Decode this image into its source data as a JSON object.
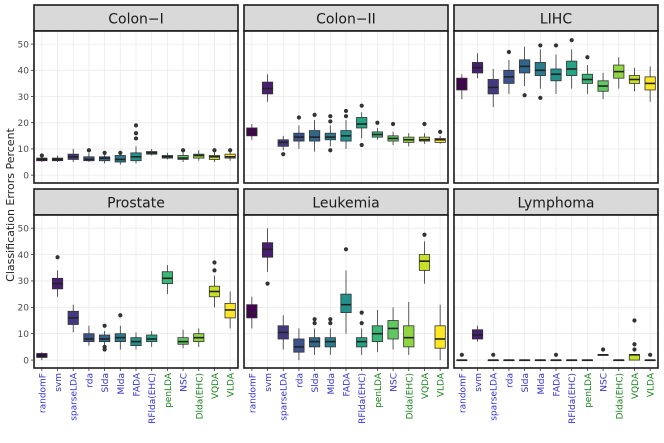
{
  "chart_data": {
    "type": "boxplot",
    "ylabel": "Classification Errors Percent",
    "ylim": [
      -3,
      55
    ],
    "yticks": [
      0,
      10,
      20,
      30,
      40,
      50
    ],
    "categories": [
      "randomF",
      "svm",
      "sparseLDA",
      "rda",
      "Slda",
      "Mlda",
      "FADA",
      "RFlda(EHC)",
      "penLDA",
      "NSC",
      "Dlda(EHC)",
      "VQDA",
      "VLDA"
    ],
    "category_colors": [
      "#3333cc",
      "#3333cc",
      "#3333cc",
      "#3333cc",
      "#3333cc",
      "#3333cc",
      "#3333cc",
      "#3333cc",
      "#1a801a",
      "#3333cc",
      "#1a801a",
      "#1a801a",
      "#1a801a"
    ],
    "fill_colors": [
      "#440154",
      "#482475",
      "#414487",
      "#355f8d",
      "#2a788e",
      "#21918c",
      "#22a884",
      "#44bf70",
      "#7ad151",
      "#bddf26",
      "#fde725"
    ],
    "panels": [
      {
        "title": "Colon−I",
        "boxes": [
          {
            "q1": 5.5,
            "med": 6,
            "q3": 6.5,
            "lo": 5,
            "hi": 7,
            "out": [
              7.5
            ]
          },
          {
            "q1": 5.5,
            "med": 6,
            "q3": 6.5,
            "lo": 5,
            "hi": 7.5,
            "out": []
          },
          {
            "q1": 6,
            "med": 7,
            "q3": 8,
            "lo": 5,
            "hi": 10,
            "out": []
          },
          {
            "q1": 5.5,
            "med": 6,
            "q3": 7,
            "lo": 5,
            "hi": 8.5,
            "out": [
              9.5
            ]
          },
          {
            "q1": 5.5,
            "med": 6.5,
            "q3": 7,
            "lo": 4.5,
            "hi": 8,
            "out": [
              8.5
            ]
          },
          {
            "q1": 5,
            "med": 6,
            "q3": 7.5,
            "lo": 4,
            "hi": 9,
            "out": [
              8.5
            ]
          },
          {
            "q1": 5.5,
            "med": 7,
            "q3": 8.5,
            "lo": 4.5,
            "hi": 11,
            "out": [
              14,
              16,
              19
            ]
          },
          {
            "q1": 8,
            "med": 8.5,
            "q3": 9,
            "lo": 7.5,
            "hi": 10,
            "out": []
          },
          {
            "q1": 6.5,
            "med": 7,
            "q3": 7.5,
            "lo": 6,
            "hi": 8.5,
            "out": []
          },
          {
            "q1": 6,
            "med": 6.5,
            "q3": 7.5,
            "lo": 5,
            "hi": 9,
            "out": [
              9.5
            ]
          },
          {
            "q1": 6.5,
            "med": 7.5,
            "q3": 8,
            "lo": 5.5,
            "hi": 9.5,
            "out": []
          },
          {
            "q1": 6,
            "med": 7,
            "q3": 7.5,
            "lo": 5,
            "hi": 9,
            "out": [
              9.5
            ]
          },
          {
            "q1": 6.5,
            "med": 7,
            "q3": 8,
            "lo": 5.5,
            "hi": 9,
            "out": [
              9.5
            ]
          }
        ]
      },
      {
        "title": "Colon−II",
        "boxes": [
          {
            "q1": 15,
            "med": 16.5,
            "q3": 18,
            "lo": 13.5,
            "hi": 19.5,
            "out": []
          },
          {
            "q1": 31,
            "med": 33,
            "q3": 35.5,
            "lo": 28,
            "hi": 38.5,
            "out": []
          },
          {
            "q1": 11,
            "med": 12.5,
            "q3": 13.5,
            "lo": 9.5,
            "hi": 15,
            "out": [
              8
            ]
          },
          {
            "q1": 13,
            "med": 14.5,
            "q3": 16,
            "lo": 10,
            "hi": 19,
            "out": [
              22
            ]
          },
          {
            "q1": 13,
            "med": 14.5,
            "q3": 17,
            "lo": 9,
            "hi": 21,
            "out": [
              23
            ]
          },
          {
            "q1": 13.5,
            "med": 14.5,
            "q3": 16,
            "lo": 11,
            "hi": 19,
            "out": [
              9.5,
              20.5,
              22.5
            ]
          },
          {
            "q1": 13,
            "med": 15,
            "q3": 17,
            "lo": 10,
            "hi": 21,
            "out": [
              22.5,
              24.5
            ]
          },
          {
            "q1": 18,
            "med": 19.5,
            "q3": 22,
            "lo": 14,
            "hi": 24,
            "out": [
              11.5,
              26.5
            ]
          },
          {
            "q1": 14.5,
            "med": 15.5,
            "q3": 16.5,
            "lo": 13.5,
            "hi": 18,
            "out": [
              20
            ]
          },
          {
            "q1": 13,
            "med": 14,
            "q3": 15,
            "lo": 11.5,
            "hi": 16.5,
            "out": [
              19.5
            ]
          },
          {
            "q1": 12.5,
            "med": 13.5,
            "q3": 14.5,
            "lo": 11,
            "hi": 16,
            "out": []
          },
          {
            "q1": 13,
            "med": 13.5,
            "q3": 14.5,
            "lo": 12,
            "hi": 16,
            "out": [
              19.5
            ]
          },
          {
            "q1": 12.5,
            "med": 13.5,
            "q3": 14,
            "lo": 12,
            "hi": 15,
            "out": [
              16.5
            ]
          }
        ]
      },
      {
        "title": "LIHC",
        "boxes": [
          {
            "q1": 32.5,
            "med": 34.5,
            "q3": 37,
            "lo": 29,
            "hi": 38.5,
            "out": []
          },
          {
            "q1": 39,
            "med": 41,
            "q3": 43,
            "lo": 37,
            "hi": 46.5,
            "out": []
          },
          {
            "q1": 31,
            "med": 33.5,
            "q3": 36.5,
            "lo": 26,
            "hi": 40.5,
            "out": []
          },
          {
            "q1": 35,
            "med": 37.5,
            "q3": 40,
            "lo": 31,
            "hi": 44,
            "out": [
              47
            ]
          },
          {
            "q1": 39,
            "med": 41.5,
            "q3": 44,
            "lo": 34,
            "hi": 49,
            "out": [
              30.5
            ]
          },
          {
            "q1": 38,
            "med": 40,
            "q3": 43,
            "lo": 33,
            "hi": 48,
            "out": [
              29.5,
              49.5
            ]
          },
          {
            "q1": 36,
            "med": 38.5,
            "q3": 40.5,
            "lo": 31,
            "hi": 46,
            "out": [
              49.5
            ]
          },
          {
            "q1": 38,
            "med": 40.5,
            "q3": 43.5,
            "lo": 33,
            "hi": 48,
            "out": [
              51.5
            ]
          },
          {
            "q1": 35,
            "med": 36.5,
            "q3": 38.5,
            "lo": 31,
            "hi": 42,
            "out": [
              45
            ]
          },
          {
            "q1": 32,
            "med": 34,
            "q3": 36,
            "lo": 29,
            "hi": 39,
            "out": []
          },
          {
            "q1": 37,
            "med": 39.5,
            "q3": 42,
            "lo": 33,
            "hi": 45,
            "out": []
          },
          {
            "q1": 35,
            "med": 36.5,
            "q3": 38,
            "lo": 32,
            "hi": 41,
            "out": []
          },
          {
            "q1": 32.5,
            "med": 35,
            "q3": 37.5,
            "lo": 28,
            "hi": 41.5,
            "out": []
          }
        ]
      },
      {
        "title": "Prostate",
        "boxes": [
          {
            "q1": 1,
            "med": 1.5,
            "q3": 2.5,
            "lo": 0,
            "hi": 3,
            "out": []
          },
          {
            "q1": 27,
            "med": 29,
            "q3": 31,
            "lo": 24,
            "hi": 34,
            "out": [
              39
            ]
          },
          {
            "q1": 13.5,
            "med": 16,
            "q3": 18.5,
            "lo": 10.5,
            "hi": 21,
            "out": []
          },
          {
            "q1": 7,
            "med": 8,
            "q3": 10,
            "lo": 5.5,
            "hi": 13,
            "out": []
          },
          {
            "q1": 7,
            "med": 8,
            "q3": 9.5,
            "lo": 5,
            "hi": 11,
            "out": [
              4,
              5,
              13
            ]
          },
          {
            "q1": 7,
            "med": 8.5,
            "q3": 10,
            "lo": 4,
            "hi": 13,
            "out": [
              17
            ]
          },
          {
            "q1": 5.5,
            "med": 7,
            "q3": 8.5,
            "lo": 4,
            "hi": 10.5,
            "out": []
          },
          {
            "q1": 7,
            "med": 8,
            "q3": 9.5,
            "lo": 5,
            "hi": 11,
            "out": []
          },
          {
            "q1": 29,
            "med": 31,
            "q3": 33.5,
            "lo": 25,
            "hi": 36,
            "out": []
          },
          {
            "q1": 6,
            "med": 7,
            "q3": 8.5,
            "lo": 4.5,
            "hi": 11.5,
            "out": []
          },
          {
            "q1": 7,
            "med": 8.5,
            "q3": 10,
            "lo": 5,
            "hi": 12,
            "out": []
          },
          {
            "q1": 24,
            "med": 26,
            "q3": 28,
            "lo": 20,
            "hi": 32,
            "out": [
              34,
              37
            ]
          },
          {
            "q1": 16,
            "med": 19,
            "q3": 21.5,
            "lo": 12,
            "hi": 26,
            "out": []
          }
        ]
      },
      {
        "title": "Leukemia",
        "boxes": [
          {
            "q1": 16,
            "med": 18,
            "q3": 21,
            "lo": 12,
            "hi": 24,
            "out": []
          },
          {
            "q1": 39,
            "med": 42,
            "q3": 44.5,
            "lo": 33.5,
            "hi": 50,
            "out": [
              29
            ]
          },
          {
            "q1": 8,
            "med": 10.5,
            "q3": 13,
            "lo": 4,
            "hi": 17,
            "out": []
          },
          {
            "q1": 3,
            "med": 5,
            "q3": 8,
            "lo": 0,
            "hi": 12,
            "out": []
          },
          {
            "q1": 5,
            "med": 7,
            "q3": 8.5,
            "lo": 2,
            "hi": 12,
            "out": [
              14,
              15.5
            ]
          },
          {
            "q1": 5,
            "med": 7,
            "q3": 8.5,
            "lo": 2,
            "hi": 12,
            "out": [
              14,
              15.5
            ]
          },
          {
            "q1": 18,
            "med": 21,
            "q3": 25,
            "lo": 10,
            "hi": 34,
            "out": [
              42
            ]
          },
          {
            "q1": 5,
            "med": 7,
            "q3": 8.5,
            "lo": 2,
            "hi": 12,
            "out": [
              14,
              18
            ]
          },
          {
            "q1": 7,
            "med": 10,
            "q3": 13,
            "lo": 3,
            "hi": 19,
            "out": []
          },
          {
            "q1": 8,
            "med": 12,
            "q3": 15,
            "lo": 4,
            "hi": 20,
            "out": []
          },
          {
            "q1": 5,
            "med": 8.5,
            "q3": 13,
            "lo": 2,
            "hi": 22,
            "out": []
          },
          {
            "q1": 34,
            "med": 37.5,
            "q3": 40,
            "lo": 29,
            "hi": 45,
            "out": [
              47.5
            ]
          },
          {
            "q1": 4.5,
            "med": 8,
            "q3": 13,
            "lo": 0,
            "hi": 21,
            "out": []
          }
        ]
      },
      {
        "title": "Lymphoma",
        "boxes": [
          {
            "q1": 0,
            "med": 0,
            "q3": 0,
            "lo": 0,
            "hi": 0,
            "out": [
              2
            ]
          },
          {
            "q1": 8,
            "med": 9.5,
            "q3": 11.5,
            "lo": 7,
            "hi": 13,
            "out": []
          },
          {
            "q1": 0,
            "med": 0,
            "q3": 0,
            "lo": 0,
            "hi": 0,
            "out": [
              2
            ]
          },
          {
            "q1": 0,
            "med": 0,
            "q3": 0,
            "lo": 0,
            "hi": 0,
            "out": []
          },
          {
            "q1": 0,
            "med": 0,
            "q3": 0,
            "lo": 0,
            "hi": 0,
            "out": []
          },
          {
            "q1": 0,
            "med": 0,
            "q3": 0,
            "lo": 0,
            "hi": 0,
            "out": []
          },
          {
            "q1": 0,
            "med": 0,
            "q3": 0,
            "lo": 0,
            "hi": 0,
            "out": [
              2
            ]
          },
          {
            "q1": 0,
            "med": 0,
            "q3": 0,
            "lo": 0,
            "hi": 0,
            "out": []
          },
          {
            "q1": 0,
            "med": 0,
            "q3": 0,
            "lo": 0,
            "hi": 0,
            "out": []
          },
          {
            "q1": 2,
            "med": 2,
            "q3": 2,
            "lo": 2,
            "hi": 2,
            "out": [
              4
            ]
          },
          {
            "q1": 0,
            "med": 0,
            "q3": 0,
            "lo": 0,
            "hi": 0,
            "out": []
          },
          {
            "q1": 0,
            "med": 2,
            "q3": 2,
            "lo": 0,
            "hi": 2,
            "out": [
              4,
              6,
              15
            ]
          },
          {
            "q1": 0,
            "med": 0,
            "q3": 0,
            "lo": 0,
            "hi": 0,
            "out": [
              2
            ]
          }
        ]
      }
    ]
  }
}
